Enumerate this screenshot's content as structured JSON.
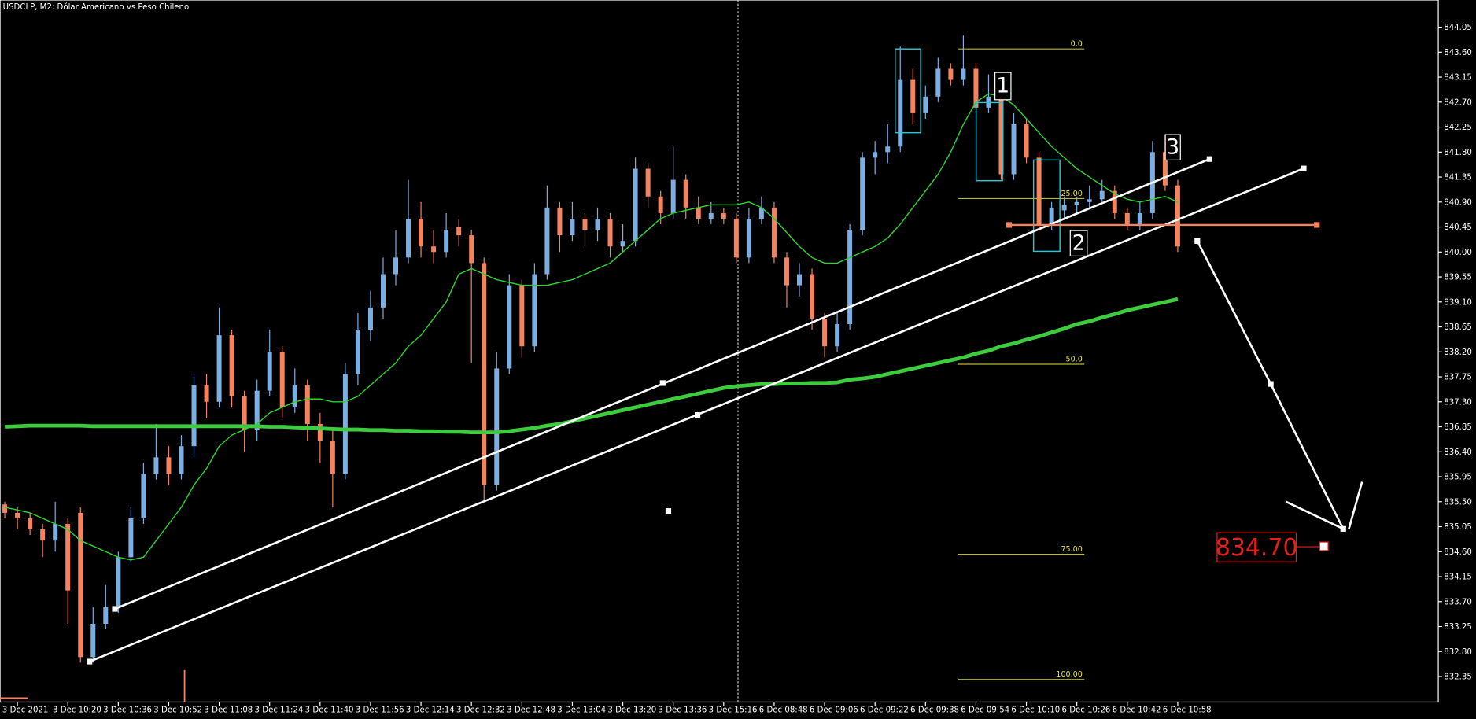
{
  "chart_data": {
    "type": "candlestick",
    "title": "USDCLP, M2:  Dólar Americano vs Peso Chileno",
    "categories": [
      null,
      "3 Dec 2021",
      null,
      null,
      null,
      "3 Dec 10:20",
      null,
      null,
      null,
      "3 Dec 10:36",
      null,
      null,
      null,
      "3 Dec 10:52",
      null,
      null,
      null,
      "3 Dec 11:08",
      null,
      null,
      null,
      "3 Dec 11:24",
      null,
      null,
      null,
      "3 Dec 11:40",
      null,
      null,
      null,
      "3 Dec 11:56",
      null,
      null,
      null,
      "3 Dec 12:14",
      null,
      null,
      null,
      "3 Dec 12:32",
      null,
      null,
      null,
      "3 Dec 12:48",
      null,
      null,
      null,
      "3 Dec 13:04",
      null,
      null,
      null,
      "3 Dec 13:20",
      null,
      null,
      null,
      "3 Dec 13:36",
      null,
      null,
      null,
      "3 Dec 15:16",
      null,
      null,
      null,
      "6 Dec 08:48",
      null,
      null,
      null,
      "6 Dec 09:06",
      null,
      null,
      null,
      "6 Dec 09:22",
      null,
      null,
      null,
      "6 Dec 09:38",
      null,
      null,
      null,
      "6 Dec 09:54",
      null,
      null,
      null,
      "6 Dec 10:10",
      null,
      null,
      null,
      "6 Dec 10:26",
      null,
      null,
      null,
      "6 Dec 10:42",
      null,
      null,
      null,
      "6 Dec 10:58",
      null
    ],
    "ohlc": [
      [
        835.45,
        835.5,
        835.2,
        835.3
      ],
      [
        835.3,
        835.4,
        835.0,
        835.2
      ],
      [
        835.2,
        835.3,
        834.9,
        835.0
      ],
      [
        835.0,
        835.1,
        834.5,
        834.8
      ],
      [
        834.8,
        835.5,
        834.6,
        835.1
      ],
      [
        835.1,
        835.2,
        833.3,
        833.9
      ],
      [
        835.3,
        835.4,
        832.6,
        832.7
      ],
      [
        832.7,
        833.6,
        832.6,
        833.3
      ],
      [
        833.3,
        834.0,
        833.2,
        833.6
      ],
      [
        833.6,
        834.6,
        833.5,
        834.5
      ],
      [
        834.5,
        835.4,
        834.4,
        835.2
      ],
      [
        835.2,
        836.2,
        835.1,
        836.0
      ],
      [
        836.0,
        836.9,
        835.9,
        836.3
      ],
      [
        836.3,
        836.5,
        835.8,
        836.0
      ],
      [
        836.0,
        836.7,
        835.9,
        836.5
      ],
      [
        836.5,
        837.8,
        836.3,
        837.6
      ],
      [
        837.6,
        837.8,
        837.0,
        837.3
      ],
      [
        837.3,
        839.0,
        837.2,
        838.5
      ],
      [
        838.5,
        838.6,
        837.2,
        837.4
      ],
      [
        837.4,
        837.5,
        836.4,
        836.8
      ],
      [
        836.8,
        837.7,
        836.6,
        837.5
      ],
      [
        837.5,
        838.6,
        837.4,
        838.2
      ],
      [
        838.2,
        838.3,
        837.0,
        837.2
      ],
      [
        837.2,
        837.9,
        837.1,
        837.6
      ],
      [
        837.6,
        837.7,
        836.6,
        836.9
      ],
      [
        836.9,
        837.1,
        836.2,
        836.6
      ],
      [
        836.6,
        836.8,
        835.4,
        836.0
      ],
      [
        836.0,
        838.0,
        835.9,
        837.8
      ],
      [
        837.8,
        838.9,
        837.6,
        838.6
      ],
      [
        838.6,
        839.3,
        838.4,
        839.0
      ],
      [
        839.0,
        839.9,
        838.8,
        839.6
      ],
      [
        839.6,
        840.4,
        839.4,
        839.9
      ],
      [
        839.9,
        841.3,
        839.8,
        840.6
      ],
      [
        840.6,
        840.9,
        839.9,
        840.1
      ],
      [
        840.1,
        840.4,
        839.8,
        840.0
      ],
      [
        840.0,
        840.7,
        839.9,
        840.4
      ],
      [
        840.45,
        840.6,
        840.1,
        840.3
      ],
      [
        840.3,
        840.4,
        838.0,
        839.8
      ],
      [
        839.8,
        839.9,
        835.5,
        835.8
      ],
      [
        835.8,
        838.2,
        835.7,
        837.9
      ],
      [
        837.9,
        839.6,
        837.8,
        839.4
      ],
      [
        839.4,
        839.5,
        838.1,
        838.3
      ],
      [
        838.3,
        839.8,
        838.2,
        839.6
      ],
      [
        839.6,
        841.2,
        839.5,
        840.8
      ],
      [
        840.8,
        840.9,
        840.0,
        840.3
      ],
      [
        840.3,
        840.9,
        840.2,
        840.6
      ],
      [
        840.6,
        840.7,
        840.1,
        840.4
      ],
      [
        840.4,
        840.8,
        840.2,
        840.6
      ],
      [
        840.6,
        840.7,
        839.9,
        840.1
      ],
      [
        840.1,
        840.5,
        840.0,
        840.2
      ],
      [
        840.2,
        841.7,
        840.1,
        841.5
      ],
      [
        841.5,
        841.6,
        840.8,
        841.0
      ],
      [
        841.0,
        841.1,
        840.5,
        840.7
      ],
      [
        840.7,
        841.9,
        840.6,
        841.3
      ],
      [
        841.3,
        841.4,
        840.6,
        840.8
      ],
      [
        840.8,
        841.0,
        840.5,
        840.6
      ],
      [
        840.6,
        840.9,
        840.5,
        840.7
      ],
      [
        840.7,
        840.8,
        840.5,
        840.6
      ],
      [
        840.6,
        840.7,
        839.8,
        839.9
      ],
      [
        839.9,
        840.8,
        839.8,
        840.6
      ],
      [
        840.6,
        841.0,
        840.5,
        840.8
      ],
      [
        840.8,
        840.9,
        839.8,
        839.9
      ],
      [
        839.9,
        840.0,
        839.0,
        839.4
      ],
      [
        839.4,
        839.8,
        839.2,
        839.6
      ],
      [
        839.6,
        839.7,
        838.6,
        838.8
      ],
      [
        838.8,
        838.9,
        838.1,
        838.3
      ],
      [
        838.3,
        838.9,
        838.2,
        838.7
      ],
      [
        838.7,
        840.5,
        838.6,
        840.4
      ],
      [
        840.4,
        841.8,
        840.3,
        841.7
      ],
      [
        841.7,
        842.0,
        841.4,
        841.8
      ],
      [
        841.8,
        842.3,
        841.6,
        841.9
      ],
      [
        841.9,
        843.7,
        841.8,
        843.1
      ],
      [
        843.1,
        843.3,
        842.3,
        842.5
      ],
      [
        842.5,
        843.0,
        842.4,
        842.8
      ],
      [
        842.8,
        843.5,
        842.7,
        843.3
      ],
      [
        843.3,
        843.4,
        843.0,
        843.1
      ],
      [
        843.1,
        843.9,
        843.0,
        843.3
      ],
      [
        843.3,
        843.4,
        842.5,
        842.6
      ],
      [
        842.6,
        843.2,
        842.5,
        842.8
      ],
      [
        842.8,
        842.9,
        841.3,
        841.4
      ],
      [
        841.4,
        842.5,
        841.3,
        842.3
      ],
      [
        842.3,
        842.4,
        841.6,
        841.7
      ],
      [
        841.7,
        841.8,
        840.4,
        840.5
      ],
      [
        840.5,
        840.9,
        840.4,
        840.8
      ],
      [
        840.75,
        841.0,
        840.6,
        840.85
      ],
      [
        840.85,
        841.0,
        840.7,
        840.9
      ],
      [
        840.9,
        841.2,
        840.8,
        840.95
      ],
      [
        840.95,
        841.3,
        840.9,
        841.1
      ],
      [
        841.1,
        841.2,
        840.6,
        840.7
      ],
      [
        840.7,
        840.8,
        840.4,
        840.5
      ],
      [
        840.5,
        840.9,
        840.4,
        840.7
      ],
      [
        840.7,
        842.0,
        840.6,
        841.8
      ],
      [
        841.8,
        842.1,
        841.1,
        841.2
      ],
      [
        841.2,
        841.3,
        840.0,
        840.1
      ]
    ],
    "up_color": "#7eaee0",
    "down_color": "#f4845f",
    "lines": [
      {
        "color": "#2fd12f",
        "width": 1.2,
        "values": [
          835.4,
          835.35,
          835.3,
          835.2,
          835.1,
          835.0,
          834.8,
          834.7,
          834.6,
          834.5,
          834.45,
          834.5,
          834.8,
          835.1,
          835.4,
          835.8,
          836.1,
          836.5,
          836.7,
          836.8,
          836.9,
          837.1,
          837.2,
          837.3,
          837.35,
          837.35,
          837.3,
          837.3,
          837.4,
          837.6,
          837.8,
          838.0,
          838.3,
          838.5,
          838.8,
          839.1,
          839.6,
          839.7,
          839.6,
          839.5,
          839.45,
          839.4,
          839.4,
          839.4,
          839.45,
          839.5,
          839.6,
          839.7,
          839.8,
          840.0,
          840.2,
          840.4,
          840.6,
          840.7,
          840.75,
          840.8,
          840.85,
          840.85,
          840.85,
          840.9,
          840.8,
          840.6,
          840.35,
          840.1,
          839.9,
          839.8,
          839.8,
          839.9,
          840.0,
          840.1,
          840.25,
          840.5,
          840.8,
          841.1,
          841.4,
          841.8,
          842.3,
          842.7,
          842.85,
          842.8,
          842.65,
          842.4,
          842.15,
          841.9,
          841.7,
          841.5,
          841.35,
          841.2,
          841.05,
          840.95,
          840.9,
          840.95,
          841.0,
          840.9
        ]
      },
      {
        "color": "#3dcc3d",
        "width": 4,
        "values": [
          836.85,
          836.86,
          836.87,
          836.87,
          836.87,
          836.87,
          836.87,
          836.86,
          836.86,
          836.86,
          836.86,
          836.86,
          836.86,
          836.86,
          836.86,
          836.86,
          836.86,
          836.86,
          836.86,
          836.86,
          836.86,
          836.85,
          836.85,
          836.84,
          836.83,
          836.82,
          836.81,
          836.8,
          836.8,
          836.79,
          836.79,
          836.78,
          836.78,
          836.77,
          836.77,
          836.76,
          836.76,
          836.75,
          836.75,
          836.75,
          836.77,
          836.8,
          836.83,
          836.87,
          836.9,
          836.95,
          837.0,
          837.05,
          837.1,
          837.15,
          837.2,
          837.25,
          837.3,
          837.35,
          837.4,
          837.45,
          837.5,
          837.55,
          837.58,
          837.6,
          837.62,
          837.62,
          837.63,
          837.63,
          837.64,
          837.64,
          837.65,
          837.7,
          837.72,
          837.75,
          837.8,
          837.85,
          837.9,
          837.95,
          838.0,
          838.05,
          838.1,
          838.17,
          838.22,
          838.3,
          838.35,
          838.42,
          838.48,
          838.55,
          838.62,
          838.7,
          838.75,
          838.82,
          838.88,
          838.95,
          839.0,
          839.05,
          839.1,
          839.15
        ]
      }
    ],
    "ylim": [
      831.89,
      844.54
    ],
    "yticks": [
      844.05,
      {
        "value": 843.6,
        "label": "843.60"
      },
      843.15,
      {
        "value": 842.7,
        "label": "842.70"
      },
      842.25,
      {
        "value": 841.8,
        "label": "841.80"
      },
      841.35,
      {
        "value": 840.9,
        "label": "840.90"
      },
      840.45,
      {
        "value": 840,
        "label": "840.00"
      },
      839.55,
      {
        "value": 839.1,
        "label": "839.10"
      },
      838.65,
      {
        "value": 838.2,
        "label": "838.20"
      },
      837.75,
      {
        "value": 837.3,
        "label": "837.30"
      },
      836.85,
      {
        "value": 836.4,
        "label": "836.40"
      },
      835.95,
      {
        "value": 835.5,
        "label": "835.50"
      },
      835.05,
      {
        "value": 834.6,
        "label": "834.60"
      },
      834.15,
      {
        "value": 833.7,
        "label": "833.70"
      },
      833.25,
      {
        "value": 832.8,
        "label": "832.80"
      },
      832.35
    ],
    "annotations": {
      "fib_levels": [
        "0.0",
        "25.00",
        "50.0",
        "75.00",
        "100.00"
      ],
      "waves": [
        "1",
        "2",
        "3"
      ],
      "target": "834.70"
    }
  }
}
